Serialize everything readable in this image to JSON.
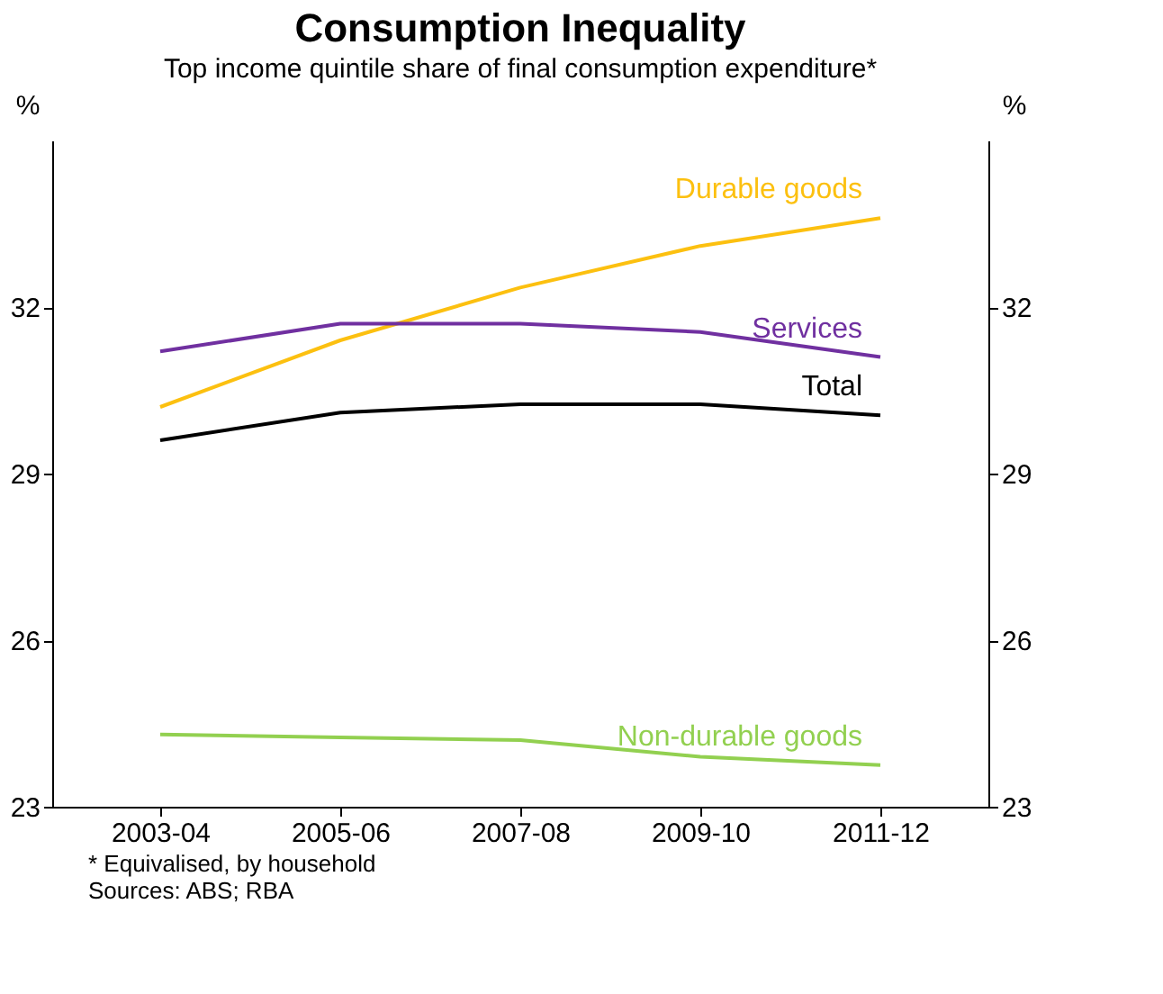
{
  "chart_data": {
    "type": "line",
    "title": "Consumption Inequality",
    "subtitle": "Top income quintile share of final consumption expenditure*",
    "ylabel": "%",
    "y2label": "%",
    "categories": [
      "2003-04",
      "2005-06",
      "2007-08",
      "2009-10",
      "2011-12"
    ],
    "series": [
      {
        "name": "Durable goods",
        "color": "#fcc010",
        "values": [
          30.2,
          31.4,
          32.35,
          33.1,
          33.6
        ]
      },
      {
        "name": "Services",
        "color": "#7030a0",
        "values": [
          31.2,
          31.7,
          31.7,
          31.55,
          31.1
        ]
      },
      {
        "name": "Total",
        "color": "#000000",
        "values": [
          29.6,
          30.1,
          30.25,
          30.25,
          30.05
        ]
      },
      {
        "name": "Non-durable goods",
        "color": "#92d050",
        "values": [
          24.3,
          24.25,
          24.2,
          23.9,
          23.75
        ]
      }
    ],
    "ylim": [
      23,
      35
    ],
    "yticks": [
      23,
      26,
      29,
      32
    ],
    "y2lim": [
      23,
      35
    ],
    "y2ticks": [
      23,
      26,
      29,
      32
    ],
    "grid": false,
    "legend": false,
    "marker": "none",
    "line_style": "solid",
    "annotations": [
      "* Equivalised, by household",
      "Sources: ABS; RBA"
    ]
  }
}
